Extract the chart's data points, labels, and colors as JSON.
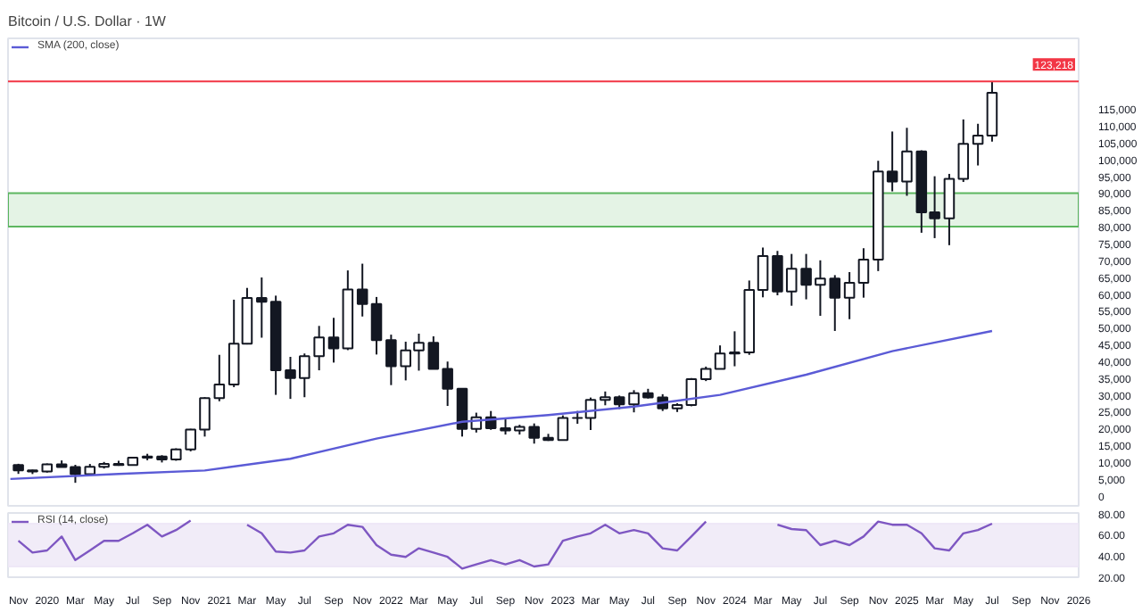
{
  "chart_data": [
    {
      "type": "candlestick",
      "title": "Bitcoin / U.S. Dollar · 1W",
      "color": "#131722",
      "x": [
        "2019-11",
        "2019-12",
        "2020-01",
        "2020-02",
        "2020-03",
        "2020-04",
        "2020-05",
        "2020-06",
        "2020-07",
        "2020-08",
        "2020-09",
        "2020-10",
        "2020-11",
        "2020-12",
        "2021-01",
        "2021-02",
        "2021-03",
        "2021-04",
        "2021-05",
        "2021-06",
        "2021-07",
        "2021-08",
        "2021-09",
        "2021-10",
        "2021-11",
        "2021-12",
        "2022-01",
        "2022-02",
        "2022-03",
        "2022-04",
        "2022-05",
        "2022-06",
        "2022-07",
        "2022-08",
        "2022-09",
        "2022-10",
        "2022-11",
        "2022-12",
        "2023-01",
        "2023-02",
        "2023-03",
        "2023-04",
        "2023-05",
        "2023-06",
        "2023-07",
        "2023-08",
        "2023-09",
        "2023-10",
        "2023-11",
        "2023-12",
        "2024-01",
        "2024-02",
        "2024-03",
        "2024-04",
        "2024-05",
        "2024-06",
        "2024-07",
        "2024-08",
        "2024-09",
        "2024-10",
        "2024-11",
        "2024-12",
        "2025-01",
        "2025-02",
        "2025-03",
        "2025-04",
        "2025-05",
        "2025-06",
        "2025-07"
      ],
      "ohlc": [
        [
          9150,
          9500,
          6500,
          7550
        ],
        [
          7550,
          7750,
          6450,
          7200
        ],
        [
          7200,
          9600,
          6900,
          9350
        ],
        [
          9350,
          10500,
          8450,
          8550
        ],
        [
          8550,
          9200,
          3850,
          6400
        ],
        [
          6400,
          9450,
          6150,
          8630
        ],
        [
          8630,
          10050,
          8100,
          9450
        ],
        [
          9450,
          10400,
          8900,
          9140
        ],
        [
          9140,
          11450,
          8950,
          11350
        ],
        [
          11350,
          12470,
          10550,
          11650
        ],
        [
          11650,
          12050,
          9900,
          10780
        ],
        [
          10780,
          14100,
          10400,
          13800
        ],
        [
          13800,
          19900,
          13200,
          19700
        ],
        [
          19700,
          29300,
          17600,
          29000
        ],
        [
          29000,
          41900,
          28100,
          33100
        ],
        [
          33100,
          58300,
          32300,
          45200
        ],
        [
          45200,
          61800,
          45000,
          58800
        ],
        [
          58800,
          64900,
          47000,
          57700
        ],
        [
          57700,
          59500,
          30000,
          37300
        ],
        [
          37300,
          41300,
          28800,
          35000
        ],
        [
          35000,
          42300,
          29300,
          41500
        ],
        [
          41500,
          50500,
          37300,
          47100
        ],
        [
          47100,
          52900,
          39600,
          43800
        ],
        [
          43800,
          67000,
          43300,
          61300
        ],
        [
          61300,
          69000,
          53300,
          57000
        ],
        [
          57000,
          59100,
          42000,
          46300
        ],
        [
          46300,
          47900,
          32900,
          38500
        ],
        [
          38500,
          45800,
          34300,
          43200
        ],
        [
          43200,
          48200,
          37200,
          45500
        ],
        [
          45500,
          47400,
          37700,
          37700
        ],
        [
          37700,
          39900,
          26700,
          31800
        ],
        [
          31800,
          31900,
          17600,
          19900
        ],
        [
          19900,
          24700,
          18800,
          23300
        ],
        [
          23300,
          25200,
          19600,
          20050
        ],
        [
          20050,
          22800,
          18200,
          19400
        ],
        [
          19400,
          21100,
          18200,
          20500
        ],
        [
          20500,
          21500,
          15500,
          17200
        ],
        [
          17200,
          18400,
          16300,
          16550
        ],
        [
          16550,
          23900,
          16500,
          23100
        ],
        [
          23100,
          25200,
          21400,
          23150
        ],
        [
          23150,
          29200,
          19550,
          28500
        ],
        [
          28500,
          31000,
          26900,
          29300
        ],
        [
          29300,
          29800,
          25800,
          27200
        ],
        [
          27200,
          31400,
          24800,
          30500
        ],
        [
          30500,
          31800,
          28900,
          29200
        ],
        [
          29200,
          30200,
          25200,
          25950
        ],
        [
          25950,
          27500,
          24900,
          26970
        ],
        [
          26970,
          35000,
          26600,
          34650
        ],
        [
          34650,
          38400,
          34100,
          37700
        ],
        [
          37700,
          44700,
          37600,
          42300
        ],
        [
          42300,
          48900,
          38500,
          42600
        ],
        [
          42600,
          64000,
          41900,
          61200
        ],
        [
          61200,
          73800,
          59000,
          71300
        ],
        [
          71300,
          72800,
          59600,
          60700
        ],
        [
          60700,
          71900,
          56500,
          67500
        ],
        [
          67500,
          71900,
          58400,
          62700
        ],
        [
          62700,
          70000,
          53500,
          64600
        ],
        [
          64600,
          65600,
          49000,
          58900
        ],
        [
          58900,
          66500,
          52500,
          63300
        ],
        [
          63300,
          73600,
          58900,
          70200
        ],
        [
          70200,
          99600,
          66800,
          96400
        ],
        [
          96400,
          108300,
          90500,
          93400
        ],
        [
          93400,
          109400,
          89200,
          102400
        ],
        [
          102400,
          102700,
          78200,
          84300
        ],
        [
          84300,
          95000,
          76600,
          82500
        ],
        [
          82500,
          95700,
          74500,
          94200
        ],
        [
          94200,
          111900,
          93300,
          104600
        ],
        [
          104600,
          110600,
          98200,
          107100
        ],
        [
          107100,
          123200,
          105300,
          119800
        ]
      ],
      "series": [
        {
          "type": "line",
          "name": "SMA (200, close)",
          "color": "#5b5bd6",
          "x": [
            "2019-10-15",
            "2020-06",
            "2020-12",
            "2021-06",
            "2021-12",
            "2022-06",
            "2022-12",
            "2023-06",
            "2023-12",
            "2024-06",
            "2024-12",
            "2025-07"
          ],
          "values": [
            5000,
            6500,
            7500,
            11000,
            17000,
            22000,
            24000,
            26500,
            30000,
            36000,
            43000,
            49000
          ]
        }
      ],
      "xlim": [
        "2019-10-10",
        "2026-01-01"
      ],
      "ylim": [
        -3000,
        136000
      ],
      "yticks": [
        0,
        {
          "value": 5000,
          "label": "5,000"
        },
        {
          "value": 10000,
          "label": "10,000"
        },
        {
          "value": 15000,
          "label": "15,000"
        },
        {
          "value": 20000,
          "label": "20,000"
        },
        {
          "value": 25000,
          "label": "25,000"
        },
        {
          "value": 30000,
          "label": "30,000"
        },
        {
          "value": 35000,
          "label": "35,000"
        },
        {
          "value": 40000,
          "label": "40,000"
        },
        {
          "value": 45000,
          "label": "45,000"
        },
        {
          "value": 50000,
          "label": "50,000"
        },
        {
          "value": 55000,
          "label": "55,000"
        },
        {
          "value": 60000,
          "label": "60,000"
        },
        {
          "value": 65000,
          "label": "65,000"
        },
        {
          "value": 70000,
          "label": "70,000"
        },
        {
          "value": 75000,
          "label": "75,000"
        },
        {
          "value": 80000,
          "label": "80,000"
        },
        {
          "value": 85000,
          "label": "85,000"
        },
        {
          "value": 90000,
          "label": "90,000"
        },
        {
          "value": 95000,
          "label": "95,000"
        },
        {
          "value": 100000,
          "label": "100,000"
        },
        {
          "value": 105000,
          "label": "105,000"
        },
        {
          "value": 110000,
          "label": "110,000"
        },
        {
          "value": 115000,
          "label": "115,000"
        }
      ],
      "ref_lines": [
        {
          "axis": "y",
          "value": 123218,
          "label": "123,218",
          "color": "#f23645"
        }
      ],
      "bands": [
        {
          "axis": "y",
          "from": 80000,
          "to": 90000,
          "color": "#4caf50"
        }
      ],
      "legend": "top left",
      "tick_labels": "y",
      "grid": false
    },
    {
      "type": "line",
      "series": [
        {
          "name": "RSI (14, close)",
          "color": "#7e57c2",
          "x": [
            "2019-11",
            "2019-12",
            "2020-01",
            "2020-02",
            "2020-03",
            "2020-04",
            "2020-05",
            "2020-06",
            "2020-07",
            "2020-08",
            "2020-09",
            "2020-10",
            "2020-11",
            "2020-12",
            "2021-01",
            "2021-02",
            "2021-03",
            "2021-04",
            "2021-05",
            "2021-06",
            "2021-07",
            "2021-08",
            "2021-09",
            "2021-10",
            "2021-11",
            "2021-12",
            "2022-01",
            "2022-02",
            "2022-03",
            "2022-04",
            "2022-05",
            "2022-06",
            "2022-07",
            "2022-08",
            "2022-09",
            "2022-10",
            "2022-11",
            "2022-12",
            "2023-01",
            "2023-02",
            "2023-03",
            "2023-04",
            "2023-05",
            "2023-06",
            "2023-07",
            "2023-08",
            "2023-09",
            "2023-10",
            "2023-11",
            "2023-12",
            "2024-01",
            "2024-02",
            "2024-03",
            "2024-04",
            "2024-05",
            "2024-06",
            "2024-07",
            "2024-08",
            "2024-09",
            "2024-10",
            "2024-11",
            "2024-12",
            "2025-01",
            "2025-02",
            "2025-03",
            "2025-04",
            "2025-05",
            "2025-06",
            "2025-07"
          ],
          "values": [
            54,
            43,
            45,
            58,
            36,
            45,
            54,
            54,
            61,
            69,
            58,
            64,
            73,
            null,
            null,
            null,
            69,
            61,
            44,
            43,
            45,
            58,
            61,
            69,
            67,
            50,
            41,
            39,
            47,
            43,
            39,
            28,
            32,
            36,
            32,
            36,
            30,
            32,
            54,
            58,
            61,
            69,
            61,
            64,
            61,
            47,
            45,
            58,
            72,
            null,
            null,
            null,
            null,
            69,
            65,
            64,
            50,
            54,
            50,
            58,
            72,
            69,
            69,
            61,
            47,
            45,
            61,
            64,
            70
          ]
        }
      ],
      "xlim": [
        "2019-10-10",
        "2026-01-01"
      ],
      "ylim": [
        20,
        80
      ],
      "yticks": [
        {
          "value": 20,
          "label": "20.00"
        },
        {
          "value": 40,
          "label": "40.00"
        },
        {
          "value": 60,
          "label": "60.00"
        },
        {
          "value": 80,
          "label": "80.00"
        }
      ],
      "xticks": [
        {
          "value": "2019-11",
          "label": "Nov"
        },
        {
          "value": "2020-01",
          "label": "2020"
        },
        {
          "value": "2020-03",
          "label": "Mar"
        },
        {
          "value": "2020-05",
          "label": "May"
        },
        {
          "value": "2020-07",
          "label": "Jul"
        },
        {
          "value": "2020-09",
          "label": "Sep"
        },
        {
          "value": "2020-11",
          "label": "Nov"
        },
        {
          "value": "2021-01",
          "label": "2021"
        },
        {
          "value": "2021-03",
          "label": "Mar"
        },
        {
          "value": "2021-05",
          "label": "May"
        },
        {
          "value": "2021-07",
          "label": "Jul"
        },
        {
          "value": "2021-09",
          "label": "Sep"
        },
        {
          "value": "2021-11",
          "label": "Nov"
        },
        {
          "value": "2022-01",
          "label": "2022"
        },
        {
          "value": "2022-03",
          "label": "Mar"
        },
        {
          "value": "2022-05",
          "label": "May"
        },
        {
          "value": "2022-07",
          "label": "Jul"
        },
        {
          "value": "2022-09",
          "label": "Sep"
        },
        {
          "value": "2022-11",
          "label": "Nov"
        },
        {
          "value": "2023-01",
          "label": "2023"
        },
        {
          "value": "2023-03",
          "label": "Mar"
        },
        {
          "value": "2023-05",
          "label": "May"
        },
        {
          "value": "2023-07",
          "label": "Jul"
        },
        {
          "value": "2023-09",
          "label": "Sep"
        },
        {
          "value": "2023-11",
          "label": "Nov"
        },
        {
          "value": "2024-01",
          "label": "2024"
        },
        {
          "value": "2024-03",
          "label": "Mar"
        },
        {
          "value": "2024-05",
          "label": "May"
        },
        {
          "value": "2024-07",
          "label": "Jul"
        },
        {
          "value": "2024-09",
          "label": "Sep"
        },
        {
          "value": "2024-11",
          "label": "Nov"
        },
        {
          "value": "2025-01",
          "label": "2025"
        },
        {
          "value": "2025-03",
          "label": "Mar"
        },
        {
          "value": "2025-05",
          "label": "May"
        },
        {
          "value": "2025-07",
          "label": "Jul"
        },
        {
          "value": "2025-09",
          "label": "Sep"
        },
        {
          "value": "2025-11",
          "label": "Nov"
        },
        {
          "value": "2026-01",
          "label": "2026"
        }
      ],
      "bands": [
        {
          "axis": "y",
          "from": 30,
          "to": 70,
          "color": "#ede7f6"
        }
      ],
      "legend": "top left",
      "grid": false,
      "marker": "none",
      "line_style": "solid"
    }
  ]
}
